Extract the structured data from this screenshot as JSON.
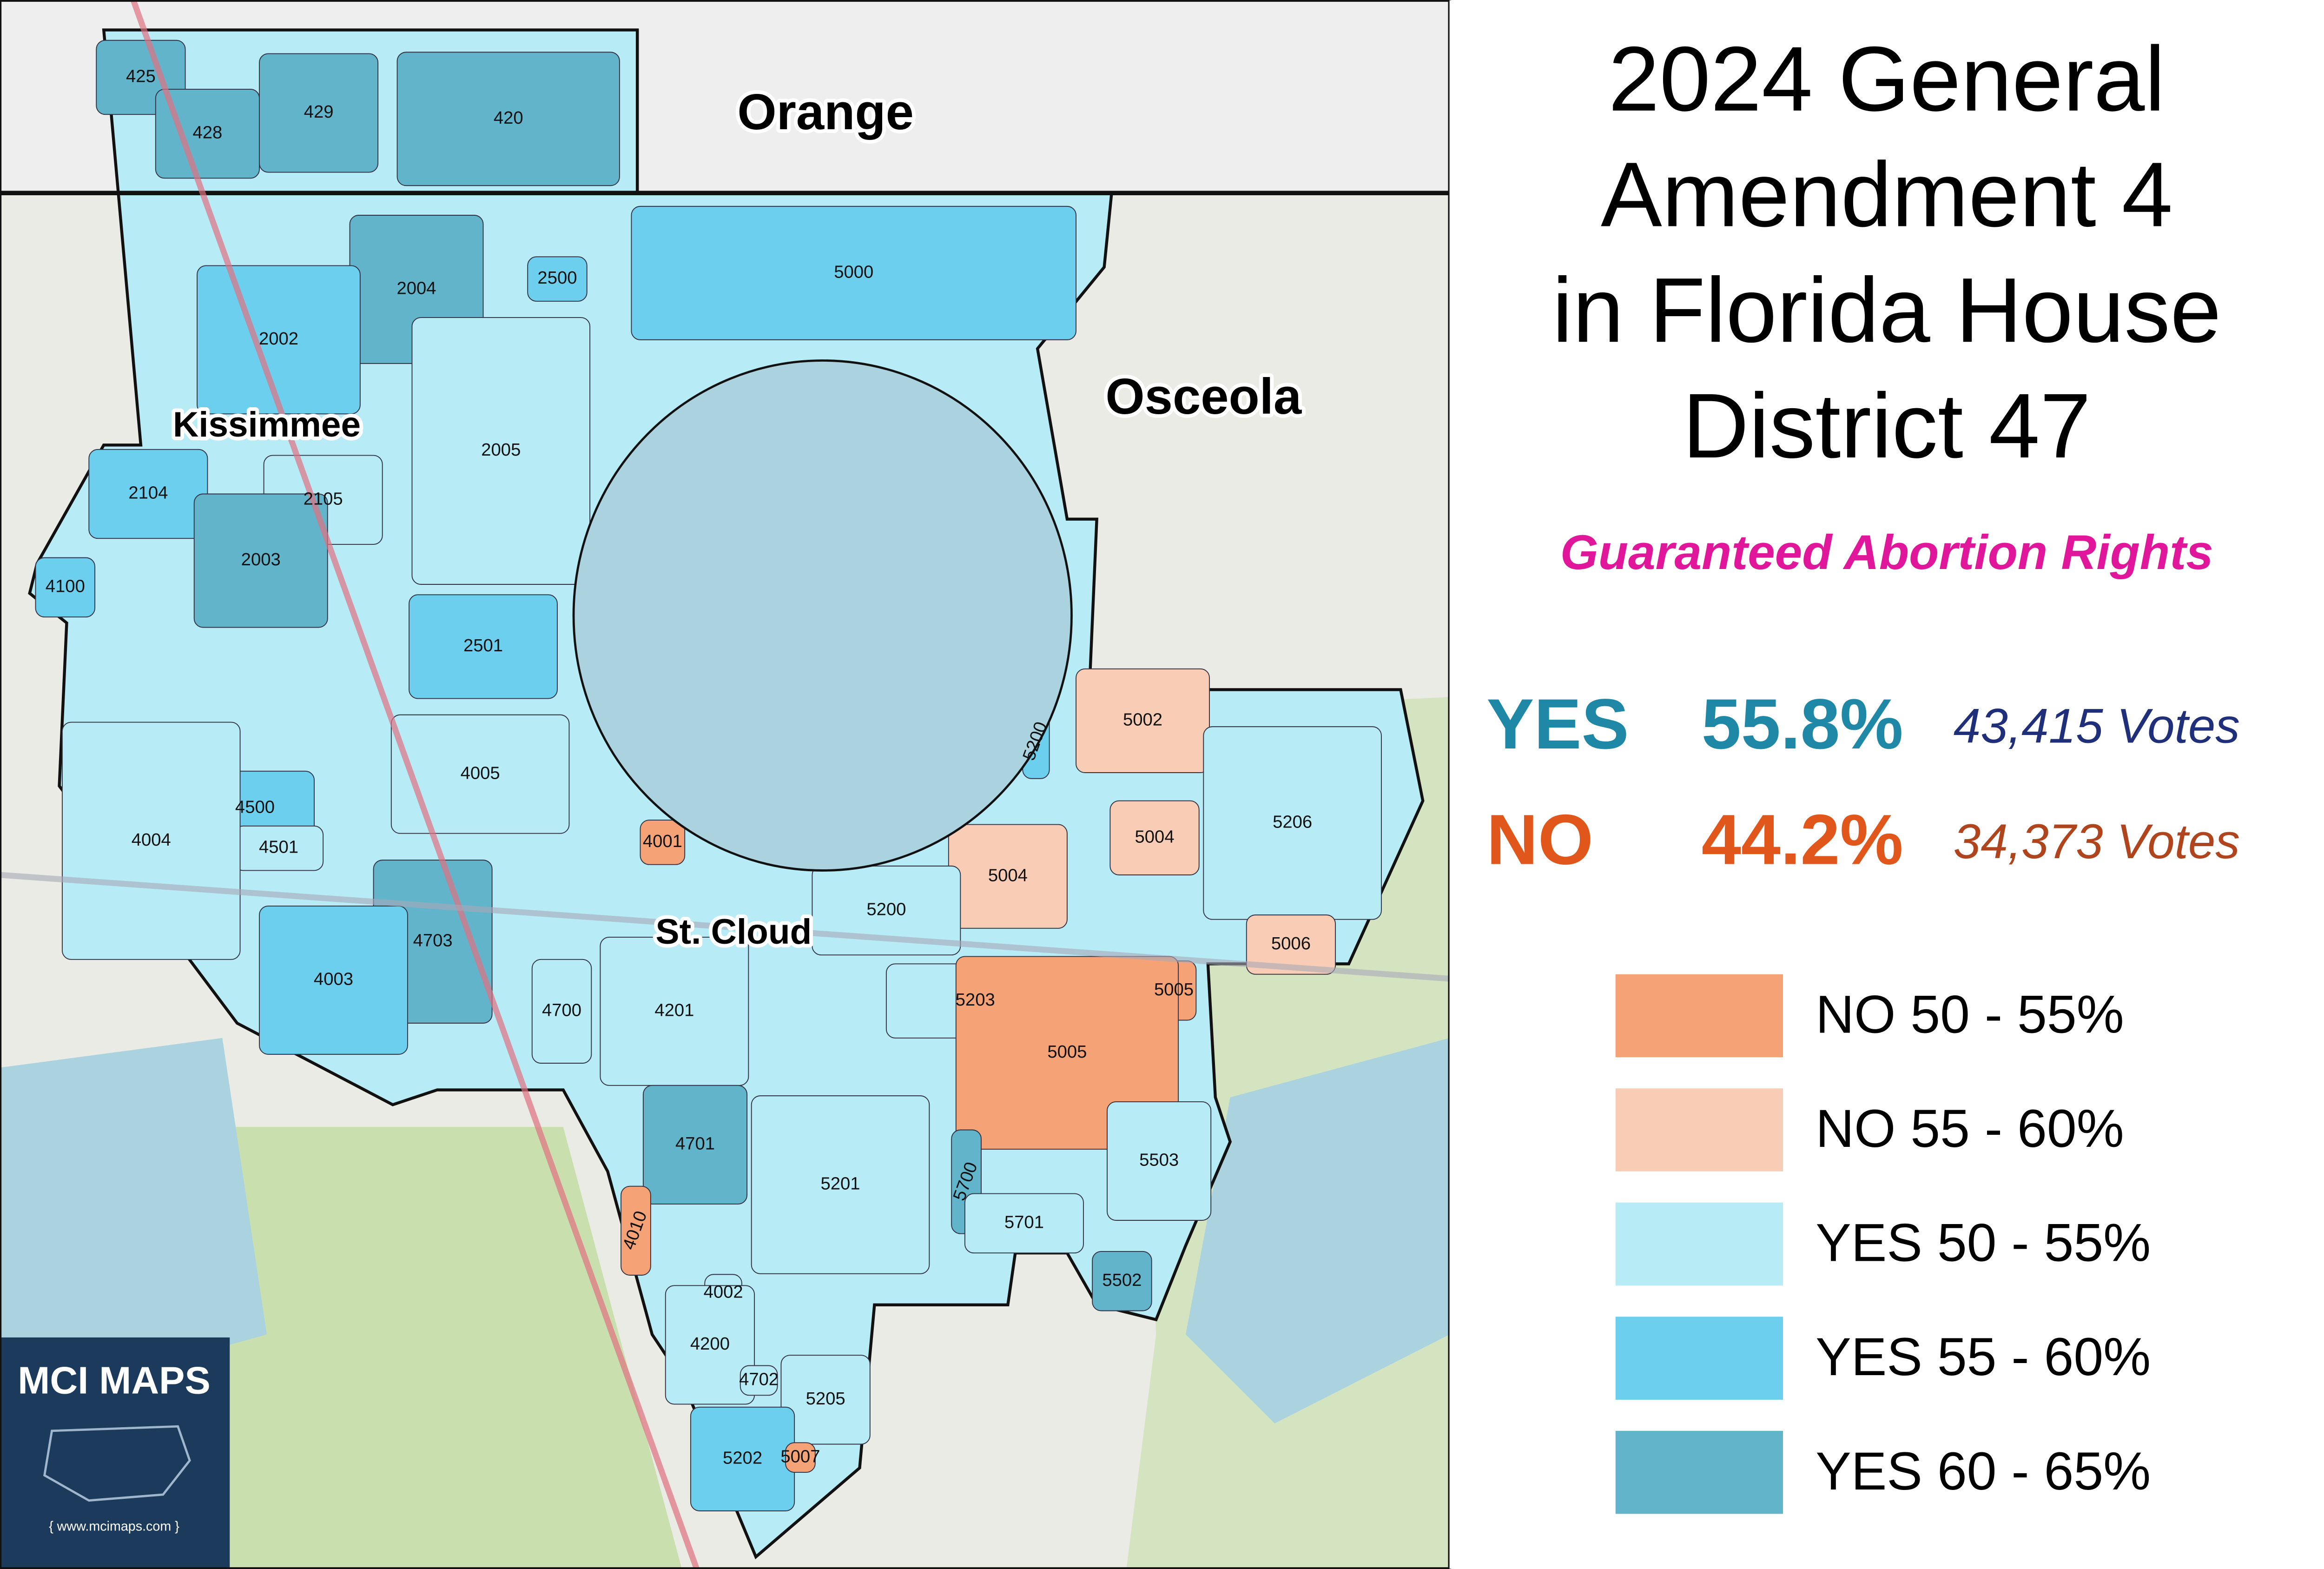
{
  "header": {
    "title_lines": [
      "2024 General",
      "Amendment 4",
      "in Florida House",
      "District 47"
    ],
    "subtitle": "Guaranteed Abortion Rights"
  },
  "results": [
    {
      "label": "YES",
      "percent": {
        "value": 55.8,
        "label": "55.8%"
      },
      "votes": {
        "value": 43415,
        "label": "43,415 Votes"
      },
      "color": "#1e88a6",
      "votes_color": "#1f2f7a"
    },
    {
      "label": "NO",
      "percent": {
        "value": 44.2,
        "label": "44.2%"
      },
      "votes": {
        "value": 34373,
        "label": "34,373 Votes"
      },
      "color": "#e0561b",
      "votes_color": "#b0441c"
    }
  ],
  "legend": [
    {
      "label": "NO 50 - 55%",
      "color": "#f4a276"
    },
    {
      "label": "NO 55 - 60%",
      "color": "#f9cdb5"
    },
    {
      "label": "YES 50 - 55%",
      "color": "#b7ecf7"
    },
    {
      "label": "YES 55 - 60%",
      "color": "#6ccfee"
    },
    {
      "label": "YES 60 - 65%",
      "color": "#62b4cb"
    }
  ],
  "map": {
    "places": [
      "Orange",
      "Osceola",
      "Kissimmee",
      "St. Cloud"
    ],
    "precincts": [
      "425",
      "428",
      "429",
      "420",
      "2500",
      "5000",
      "2004",
      "2002",
      "2005",
      "2104",
      "2105",
      "2003",
      "4100",
      "2501",
      "5002",
      "5200",
      "4005",
      "4500",
      "4501",
      "4004",
      "4001",
      "5004",
      "5004",
      "5206",
      "5200",
      "4703",
      "4003",
      "5006",
      "5005",
      "4700",
      "4201",
      "5203",
      "5005",
      "4701",
      "5700",
      "5201",
      "5503",
      "5701",
      "4010",
      "5502",
      "4002",
      "4200",
      "4702",
      "5205",
      "5202",
      "5007"
    ]
  },
  "logo": {
    "name": "MCI MAPS",
    "url": "{ www.mcimaps.com }"
  }
}
